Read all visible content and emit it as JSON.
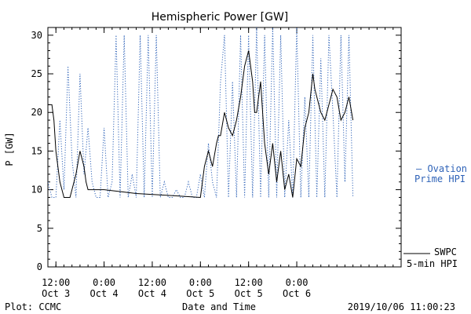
{
  "chart_data": {
    "type": "line",
    "title": "Hemispheric Power [GW]",
    "xlabel": "Date and Time",
    "ylabel": "P [GW]",
    "ylim": [
      0,
      31
    ],
    "xlim_hours": [
      -2,
      86
    ],
    "y_ticks": [
      0,
      5,
      10,
      15,
      20,
      25,
      30
    ],
    "x_ticks": [
      {
        "h": 0,
        "time": "12:00",
        "date": "Oct 3"
      },
      {
        "h": 12,
        "time": "0:00",
        "date": "Oct 4"
      },
      {
        "h": 24,
        "time": "12:00",
        "date": "Oct 4"
      },
      {
        "h": 36,
        "time": "0:00",
        "date": "Oct 5"
      },
      {
        "h": 48,
        "time": "12:00",
        "date": "Oct 5"
      },
      {
        "h": 60,
        "time": "0:00",
        "date": "Oct 6"
      }
    ],
    "series": [
      {
        "name": "SWPC 5-min HPI",
        "color": "#000000",
        "style": "solid",
        "x": [
          -2,
          -1,
          -0.5,
          0,
          1,
          2,
          3,
          3.5,
          4,
          5,
          6,
          7,
          7.5,
          8,
          9,
          10,
          11,
          12,
          20,
          30,
          36,
          37,
          38,
          39,
          40,
          40.5,
          41,
          42,
          43,
          44,
          44.5,
          45,
          46,
          47,
          48,
          49,
          49.5,
          50,
          51,
          52,
          53,
          54,
          55,
          56,
          57,
          58,
          59,
          60,
          61,
          62,
          63,
          64,
          64.5,
          65,
          66,
          67,
          68,
          69,
          70,
          71,
          72,
          73,
          74
        ],
        "values": [
          21,
          21,
          19,
          15,
          11,
          9,
          9,
          9,
          10,
          12,
          15,
          13,
          11,
          10,
          10,
          10,
          10,
          10,
          9.5,
          9.2,
          9,
          13,
          15,
          13,
          16,
          17,
          17,
          20,
          18,
          17,
          18,
          19,
          22,
          26,
          28,
          24,
          20,
          20,
          24,
          16,
          12,
          16,
          11,
          15,
          10,
          12,
          9,
          14,
          13,
          18,
          20,
          25,
          23,
          22,
          20,
          19,
          21,
          23,
          22,
          19,
          20,
          22,
          19
        ],
        "legend": [
          "SWPC",
          "5-min HPI"
        ]
      },
      {
        "name": "Ovation Prime HPI",
        "color": "#2f63b8",
        "style": "dotted",
        "x": [
          -2,
          -1,
          0,
          1,
          2,
          3,
          4,
          5,
          6,
          7,
          8,
          9,
          10,
          11,
          12,
          13,
          14,
          15,
          16,
          17,
          18,
          19,
          20,
          21,
          22,
          23,
          24,
          25,
          26,
          27,
          28,
          29,
          30,
          31,
          32,
          33,
          34,
          35,
          36,
          37,
          38,
          39,
          40,
          41,
          42,
          43,
          44,
          45,
          46,
          47,
          48,
          49,
          50,
          51,
          52,
          53,
          54,
          55,
          56,
          57,
          58,
          59,
          60,
          61,
          62,
          63,
          64,
          65,
          66,
          67,
          68,
          69,
          70,
          71,
          72,
          73,
          74
        ],
        "values": [
          11,
          9,
          9,
          19,
          10,
          26,
          14,
          9,
          25,
          12,
          18,
          11,
          9,
          9,
          18,
          9,
          11,
          30,
          9,
          30,
          9,
          12,
          9,
          30,
          9,
          30,
          9,
          30,
          9,
          11,
          9,
          9,
          10,
          9,
          9,
          11,
          9,
          9,
          12,
          9,
          16,
          11,
          9,
          24,
          30,
          9,
          24,
          9,
          30,
          9,
          30,
          9,
          31,
          9,
          30,
          9,
          31,
          9,
          30,
          9,
          19,
          9,
          31,
          9,
          22,
          9,
          30,
          9,
          27,
          9,
          30,
          20,
          9,
          30,
          11,
          30,
          9
        ],
        "legend": [
          "— Ovation",
          "Prime HPI"
        ]
      }
    ],
    "footer_left": "Plot: CCMC",
    "footer_right": "2019/10/06 11:00:23"
  }
}
